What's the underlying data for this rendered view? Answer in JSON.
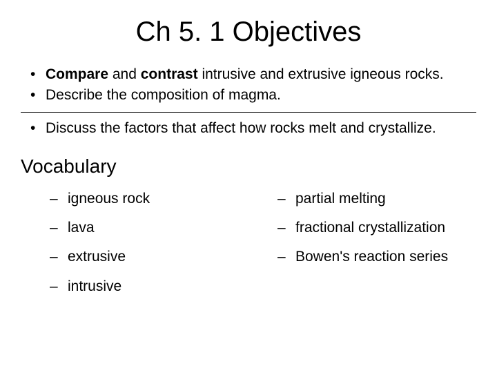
{
  "slide": {
    "title": "Ch 5. 1 Objectives",
    "title_fontsize": 40,
    "background_color": "#ffffff",
    "text_color": "#000000",
    "objectives": [
      {
        "prefix_bold": "Compare",
        "mid_text": " and ",
        "bold2": "contrast",
        "rest": " intrusive and extrusive igneous rocks."
      },
      {
        "text": "Describe the composition of magma."
      }
    ],
    "objectives_group2": [
      {
        "text": "Discuss the factors that affect how rocks melt and crystallize."
      }
    ],
    "vocab_heading": "Vocabulary",
    "vocab_heading_fontsize": 28,
    "vocab_left": [
      "igneous rock",
      "lava",
      "extrusive",
      "intrusive"
    ],
    "vocab_right": [
      "partial melting",
      "fractional crystallization",
      "Bowen's reaction series"
    ],
    "bullet_fontsize": 21,
    "separator_color": "#000000",
    "font_family": "Arial"
  }
}
